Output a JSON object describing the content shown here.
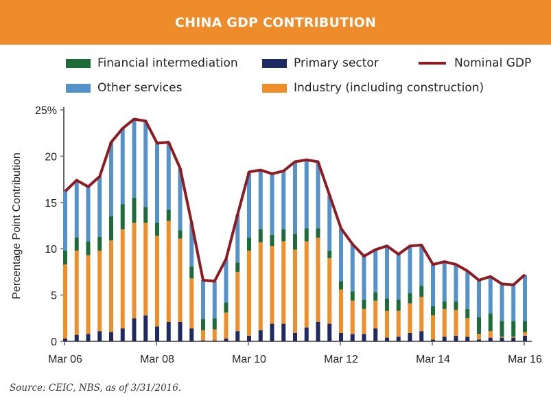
{
  "header": {
    "title": "CHINA GDP CONTRIBUTION"
  },
  "source": "Source: CEIC, NBS, as of 3/31/2016.",
  "chart_data": {
    "type": "bar",
    "stacked": true,
    "ylabel": "Percentage Point Contribution",
    "ylim": [
      0,
      25
    ],
    "yticks": [
      "0",
      "5",
      "10",
      "15",
      "20",
      "25%"
    ],
    "ytick_values": [
      0,
      5,
      10,
      15,
      20,
      25
    ],
    "xticks": [
      "Mar 06",
      "Mar 08",
      "Mar 10",
      "Mar 12",
      "Mar 14",
      "Mar 16"
    ],
    "xtick_index": [
      0,
      8,
      16,
      24,
      32,
      40
    ],
    "legend_placement": "top",
    "categories": [
      "Mar 06",
      "Jun 06",
      "Sep 06",
      "Dec 06",
      "Mar 07",
      "Jun 07",
      "Sep 07",
      "Dec 07",
      "Mar 08",
      "Jun 08",
      "Sep 08",
      "Dec 08",
      "Mar 09",
      "Jun 09",
      "Sep 09",
      "Dec 09",
      "Mar 10",
      "Jun 10",
      "Sep 10",
      "Dec 10",
      "Mar 11",
      "Jun 11",
      "Sep 11",
      "Dec 11",
      "Mar 12",
      "Jun 12",
      "Sep 12",
      "Dec 12",
      "Mar 13",
      "Jun 13",
      "Sep 13",
      "Dec 13",
      "Mar 14",
      "Jun 14",
      "Sep 14",
      "Dec 14",
      "Mar 15",
      "Jun 15",
      "Sep 15",
      "Dec 15",
      "Mar 16"
    ],
    "series": [
      {
        "name": "Primary sector",
        "color": "#1f2a63",
        "kind": "bar",
        "values": [
          0.3,
          0.7,
          0.8,
          1.1,
          1.0,
          1.4,
          2.5,
          2.8,
          1.6,
          2.1,
          2.1,
          1.4,
          0.1,
          0.1,
          0.3,
          1.1,
          0.6,
          1.2,
          1.9,
          1.9,
          0.9,
          1.5,
          2.1,
          1.9,
          0.9,
          0.8,
          0.8,
          1.4,
          0.4,
          0.5,
          0.9,
          1.1,
          0.2,
          0.5,
          0.6,
          0.5,
          0.2,
          0.4,
          0.4,
          0.4,
          0.6
        ]
      },
      {
        "name": "Industry (including construction)",
        "color": "#ee8f2b",
        "kind": "bar",
        "values": [
          8.0,
          9.1,
          8.5,
          8.7,
          9.9,
          10.7,
          10.3,
          10.0,
          9.8,
          10.9,
          9.0,
          5.4,
          1.1,
          1.2,
          2.8,
          6.4,
          9.2,
          9.5,
          8.4,
          8.9,
          9.0,
          9.3,
          9.1,
          7.1,
          4.7,
          3.6,
          2.7,
          3.0,
          2.9,
          2.8,
          3.2,
          3.7,
          2.6,
          3.0,
          2.8,
          2.0,
          0.6,
          0.7,
          0.1,
          0.1,
          0.4
        ]
      },
      {
        "name": "Financial intermediation",
        "color": "#1e6b3a",
        "kind": "bar",
        "values": [
          1.5,
          1.4,
          1.5,
          1.5,
          2.6,
          2.7,
          2.7,
          1.7,
          1.4,
          1.2,
          0.9,
          1.3,
          1.2,
          1.2,
          1.1,
          1.0,
          1.4,
          1.4,
          1.2,
          1.3,
          1.7,
          1.4,
          1.0,
          0.8,
          0.9,
          1.0,
          1.0,
          0.9,
          1.3,
          1.2,
          1.1,
          1.2,
          1.0,
          0.8,
          0.9,
          1.0,
          1.8,
          1.9,
          1.7,
          1.7,
          1.2
        ]
      },
      {
        "name": "Other services",
        "color": "#5592c9",
        "kind": "bar",
        "values": [
          6.4,
          6.2,
          5.9,
          6.5,
          8.0,
          8.2,
          8.5,
          9.3,
          8.6,
          7.3,
          6.7,
          4.7,
          4.2,
          4.0,
          4.7,
          5.2,
          7.1,
          6.4,
          6.6,
          6.3,
          7.8,
          7.4,
          7.2,
          6.0,
          5.7,
          5.1,
          4.7,
          4.6,
          5.7,
          4.9,
          5.1,
          4.4,
          4.5,
          4.3,
          4.0,
          4.1,
          4.0,
          4.0,
          4.0,
          3.9,
          5.0
        ]
      },
      {
        "name": "Nominal GDP",
        "color": "#8e1b1f",
        "kind": "line",
        "values": [
          16.2,
          17.4,
          16.7,
          17.8,
          21.5,
          23.0,
          24.0,
          23.8,
          21.4,
          21.5,
          18.7,
          12.8,
          6.6,
          6.5,
          8.9,
          13.7,
          18.3,
          18.5,
          18.1,
          18.4,
          19.4,
          19.6,
          19.4,
          15.8,
          12.2,
          10.5,
          9.2,
          9.9,
          10.3,
          9.4,
          10.3,
          10.4,
          8.3,
          8.6,
          8.3,
          7.6,
          6.6,
          7.0,
          6.2,
          6.1,
          7.2
        ]
      }
    ]
  }
}
